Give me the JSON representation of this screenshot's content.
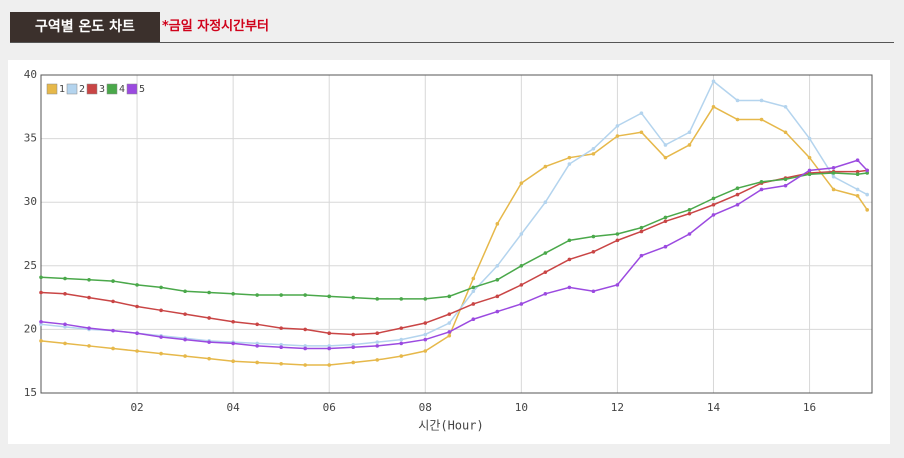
{
  "header": {
    "title": "구역별 온도 차트",
    "note": "*금일 자정시간부터"
  },
  "chart_data": {
    "type": "line",
    "xlabel": "시간(Hour)",
    "x": [
      0,
      0.5,
      1,
      1.5,
      2,
      2.5,
      3,
      3.5,
      4,
      4.5,
      5,
      5.5,
      6,
      6.5,
      7,
      7.5,
      8,
      8.5,
      9,
      9.5,
      10,
      10.5,
      11,
      11.5,
      12,
      12.5,
      13,
      13.5,
      14,
      14.5,
      15,
      15.5,
      16,
      16.5,
      17,
      17.2
    ],
    "series": [
      {
        "name": "1",
        "color": "#e6b84a",
        "values": [
          19.1,
          18.9,
          18.7,
          18.5,
          18.3,
          18.1,
          17.9,
          17.7,
          17.5,
          17.4,
          17.3,
          17.2,
          17.2,
          17.4,
          17.6,
          17.9,
          18.3,
          19.5,
          24,
          28.3,
          31.5,
          32.8,
          33.5,
          33.8,
          35.2,
          35.5,
          33.5,
          34.5,
          37.5,
          36.5,
          36.5,
          35.5,
          33.5,
          31,
          30.5,
          29.4
        ]
      },
      {
        "name": "2",
        "color": "#b4d4ee",
        "values": [
          20.4,
          20.2,
          20,
          19.9,
          19.7,
          19.5,
          19.3,
          19.1,
          19,
          18.9,
          18.8,
          18.7,
          18.7,
          18.8,
          19,
          19.2,
          19.6,
          20.5,
          23,
          25,
          27.5,
          30,
          33,
          34.2,
          36,
          37,
          34.5,
          35.5,
          39.5,
          38,
          38,
          37.5,
          35,
          32,
          31,
          30.6
        ]
      },
      {
        "name": "3",
        "color": "#c94545",
        "values": [
          22.9,
          22.8,
          22.5,
          22.2,
          21.8,
          21.5,
          21.2,
          20.9,
          20.6,
          20.4,
          20.1,
          20,
          19.7,
          19.6,
          19.7,
          20.1,
          20.5,
          21.2,
          22,
          22.6,
          23.5,
          24.5,
          25.5,
          26.1,
          27,
          27.7,
          28.5,
          29.1,
          29.8,
          30.6,
          31.5,
          31.9,
          32.3,
          32.4,
          32.4,
          32.5
        ]
      },
      {
        "name": "4",
        "color": "#4aa84a",
        "values": [
          24.1,
          24,
          23.9,
          23.8,
          23.5,
          23.3,
          23,
          22.9,
          22.8,
          22.7,
          22.7,
          22.7,
          22.6,
          22.5,
          22.4,
          22.4,
          22.4,
          22.6,
          23.3,
          23.9,
          25,
          26,
          27,
          27.3,
          27.5,
          28,
          28.8,
          29.4,
          30.3,
          31.1,
          31.6,
          31.8,
          32.2,
          32.3,
          32.2,
          32.3
        ]
      },
      {
        "name": "5",
        "color": "#9b4ae0",
        "values": [
          20.6,
          20.4,
          20.1,
          19.9,
          19.7,
          19.4,
          19.2,
          19,
          18.9,
          18.7,
          18.6,
          18.5,
          18.5,
          18.6,
          18.7,
          18.9,
          19.2,
          19.8,
          20.8,
          21.4,
          22,
          22.8,
          23.3,
          23,
          23.5,
          25.8,
          26.5,
          27.5,
          29,
          29.8,
          31,
          31.3,
          32.5,
          32.7,
          33.3,
          32.5
        ]
      }
    ],
    "xlim": [
      0,
      17.3
    ],
    "xticks": [
      {
        "value": 2,
        "label": "02"
      },
      {
        "value": 4,
        "label": "04"
      },
      {
        "value": 6,
        "label": "06"
      },
      {
        "value": 8,
        "label": "08"
      },
      {
        "value": 10,
        "label": "10"
      },
      {
        "value": 12,
        "label": "12"
      },
      {
        "value": 14,
        "label": "14"
      },
      {
        "value": 16,
        "label": "16"
      }
    ],
    "ylim": [
      15,
      40
    ],
    "yticks": [
      15,
      20,
      25,
      30,
      35,
      40
    ],
    "grid": true,
    "legend": "upper left"
  }
}
